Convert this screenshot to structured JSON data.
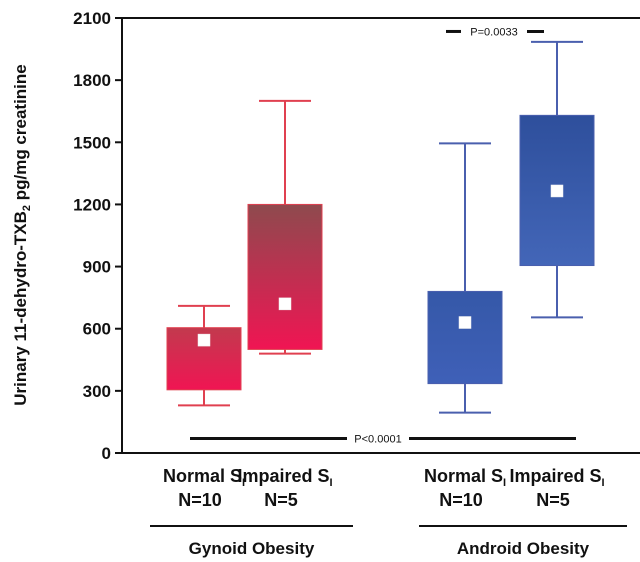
{
  "chart_data": {
    "type": "boxplot",
    "ylabel": {
      "prefix": "Urinary 11-dehydro-TXB",
      "subscript": "2",
      "suffix": " pg/mg creatinine"
    },
    "ylim": [
      0,
      2100
    ],
    "yticks": [
      0,
      300,
      600,
      900,
      1200,
      1500,
      1800,
      2100
    ],
    "grid": false,
    "boxes": [
      {
        "label_main": "Normal S",
        "label_sub": "I",
        "n_label": "N=10",
        "group": "Gynoid Obesity",
        "min": 230,
        "q1": 305,
        "median": 545,
        "q3": 605,
        "max": 710,
        "color_top": "#c23a4e",
        "color_bottom": "#f01553",
        "whisker_color": "#e04050"
      },
      {
        "label_main": "Impaired S",
        "label_sub": "I",
        "n_label": "N=5",
        "group": "Gynoid Obesity",
        "min": 480,
        "q1": 500,
        "median": 720,
        "q3": 1200,
        "max": 1700,
        "color_top": "#8e4a4e",
        "color_bottom": "#f01553",
        "whisker_color": "#e04050"
      },
      {
        "label_main": "Normal S",
        "label_sub": "I",
        "n_label": "N=10",
        "group": "Android Obesity",
        "min": 195,
        "q1": 335,
        "median": 630,
        "q3": 780,
        "max": 1495,
        "color_top": "#3558a8",
        "color_bottom": "#3f60b8",
        "whisker_color": "#4a5fae"
      },
      {
        "label_main": "Impaired S",
        "label_sub": "I",
        "n_label": "N=5",
        "group": "Android Obesity",
        "min": 655,
        "q1": 905,
        "median": 1265,
        "q3": 1630,
        "max": 1985,
        "color_top": "#2e4f9c",
        "color_bottom": "#4366b8",
        "whisker_color": "#4a5fae"
      }
    ],
    "groups": [
      "Gynoid Obesity",
      "Android Obesity"
    ],
    "annotations": [
      {
        "text": "P=0.0033",
        "between": [
          2,
          3
        ],
        "y": 2035
      },
      {
        "text": "P<0.0001",
        "between": [
          0,
          3
        ],
        "y": 70
      }
    ]
  }
}
